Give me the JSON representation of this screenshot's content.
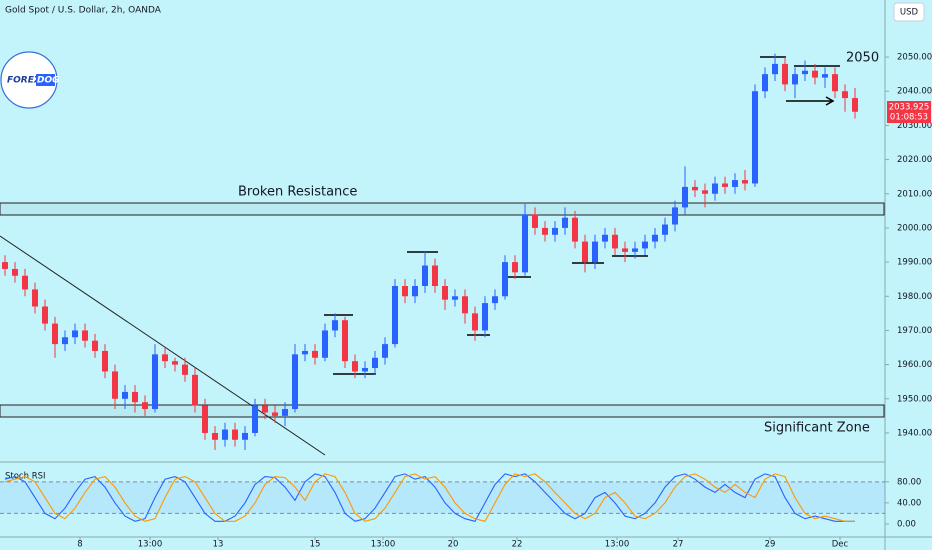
{
  "header": {
    "title": "Gold Spot / U.S. Dollar, 2h, OANDA",
    "currency": "USD"
  },
  "logo": {
    "text1": "FOREX",
    "text2": "DOG"
  },
  "chart_data": [
    {
      "type": "candlestick",
      "open": [
        1990,
        1988,
        1986,
        1982,
        1977,
        1972,
        1966,
        1968,
        1970,
        1967,
        1964,
        1958,
        1950,
        1952,
        1949,
        1947,
        1963,
        1961,
        1960,
        1957,
        1948,
        1940,
        1938,
        1941,
        1938,
        1940,
        1948,
        1946,
        1945,
        1947,
        1963,
        1964,
        1962,
        1970,
        1973,
        1961,
        1958,
        1959,
        1962,
        1966,
        1983,
        1980,
        1983,
        1989,
        1983,
        1979,
        1980,
        1975,
        1970,
        1978,
        1980,
        1990,
        1987,
        2004,
        2000,
        1998,
        2000,
        2003,
        1996,
        1990,
        1996,
        1998,
        1994,
        1993,
        1994,
        1996,
        1998,
        2001,
        2006,
        2012,
        2011,
        2010,
        2013,
        2012,
        2014,
        2013,
        2040,
        2045,
        2048,
        2042,
        2045,
        2046,
        2044,
        2045,
        2040,
        2038
      ],
      "high": [
        1992,
        1990,
        1988,
        1984,
        1979,
        1974,
        1970,
        1972,
        1972,
        1969,
        1966,
        1960,
        1954,
        1954,
        1951,
        1966,
        1965,
        1962,
        1962,
        1959,
        1950,
        1942,
        1943,
        1943,
        1942,
        1950,
        1950,
        1948,
        1949,
        1966,
        1966,
        1966,
        1972,
        1975,
        1974,
        1963,
        1961,
        1964,
        1968,
        1985,
        1985,
        1985,
        1993,
        1991,
        1985,
        1982,
        1982,
        1977,
        1980,
        1982,
        1992,
        1992,
        2007,
        2006,
        2002,
        2002,
        2006,
        2005,
        1998,
        1998,
        2000,
        2000,
        1996,
        1996,
        1998,
        2000,
        2003,
        2008,
        2018,
        2014,
        2013,
        2015,
        2015,
        2016,
        2017,
        2042,
        2047,
        2051,
        2050,
        2047,
        2049,
        2048,
        2047,
        2047,
        2042,
        2041
      ],
      "low": [
        1986,
        1984,
        1980,
        1975,
        1970,
        1962,
        1964,
        1966,
        1965,
        1962,
        1956,
        1947,
        1947,
        1946,
        1945,
        1946,
        1959,
        1958,
        1955,
        1946,
        1938,
        1935,
        1936,
        1936,
        1935,
        1939,
        1944,
        1943,
        1942,
        1946,
        1961,
        1960,
        1961,
        1968,
        1959,
        1956,
        1956,
        1957,
        1960,
        1965,
        1978,
        1978,
        1981,
        1981,
        1976,
        1977,
        1972,
        1967,
        1968,
        1976,
        1979,
        1985,
        1986,
        1998,
        1996,
        1996,
        1998,
        1994,
        1987,
        1988,
        1994,
        1992,
        1990,
        1991,
        1992,
        1994,
        1996,
        1999,
        2004,
        2009,
        2006,
        2008,
        2010,
        2010,
        2011,
        2012,
        2038,
        2043,
        2040,
        2038,
        2043,
        2042,
        2041,
        2038,
        2034,
        2032
      ],
      "close": [
        1988,
        1986,
        1982,
        1977,
        1972,
        1966,
        1968,
        1970,
        1967,
        1964,
        1958,
        1950,
        1952,
        1949,
        1947,
        1963,
        1961,
        1960,
        1957,
        1948,
        1940,
        1938,
        1941,
        1938,
        1940,
        1948,
        1946,
        1945,
        1947,
        1963,
        1964,
        1962,
        1970,
        1973,
        1961,
        1958,
        1959,
        1962,
        1966,
        1983,
        1980,
        1983,
        1989,
        1983,
        1979,
        1980,
        1975,
        1970,
        1978,
        1980,
        1990,
        1987,
        2004,
        2000,
        1998,
        2000,
        2003,
        1996,
        1990,
        1996,
        1998,
        1994,
        1993,
        1994,
        1996,
        1998,
        2001,
        2006,
        2012,
        2011,
        2010,
        2013,
        2012,
        2014,
        2013,
        2040,
        2045,
        2048,
        2042,
        2045,
        2046,
        2044,
        2045,
        2040,
        2038,
        2034
      ],
      "up_color": "#2962ff",
      "down_color": "#f23645",
      "xlim": [
        -0.5,
        88
      ],
      "xticks": [
        {
          "value": 7.5,
          "label": "8"
        },
        {
          "value": 14.5,
          "label": "13:00"
        },
        {
          "value": 21.3,
          "label": "13"
        },
        {
          "value": 31,
          "label": "15"
        },
        {
          "value": 37.8,
          "label": "13:00"
        },
        {
          "value": 44.8,
          "label": "20"
        },
        {
          "value": 51.2,
          "label": "22"
        },
        {
          "value": 61.2,
          "label": "13:00"
        },
        {
          "value": 67.3,
          "label": "27"
        },
        {
          "value": 76.5,
          "label": "29"
        },
        {
          "value": 83.5,
          "label": "Dec"
        }
      ],
      "ylim": [
        1931.5,
        2066.7
      ],
      "yticks": [
        {
          "value": 1940,
          "label": "1940.000"
        },
        {
          "value": 1950,
          "label": "1950.000"
        },
        {
          "value": 1960,
          "label": "1960.000"
        },
        {
          "value": 1970,
          "label": "1970.000"
        },
        {
          "value": 1980,
          "label": "1980.000"
        },
        {
          "value": 1990,
          "label": "1990.000"
        },
        {
          "value": 2000,
          "label": "2000.000"
        },
        {
          "value": 2010,
          "label": "2010.000"
        },
        {
          "value": 2020,
          "label": "2020.000"
        },
        {
          "value": 2030,
          "label": "2030.000"
        },
        {
          "value": 2040,
          "label": "2040.000"
        },
        {
          "value": 2050,
          "label": "2050.000"
        }
      ],
      "annotations": [
        "Broken Resistance",
        "Significant Zone",
        "2050"
      ],
      "last_price": {
        "value": 2033.925,
        "label": "2033.925"
      },
      "countdown": "01:08:53"
    },
    {
      "type": "line",
      "title": "Stoch RSI",
      "xlim": [
        -0.5,
        88
      ],
      "ylim": [
        -21,
        112
      ],
      "yticks": [
        {
          "value": 80,
          "label": "80.00"
        },
        {
          "value": 40,
          "label": "40.00"
        },
        {
          "value": 0,
          "label": "0.00"
        }
      ],
      "band": [
        20,
        80
      ],
      "series": [
        {
          "color": "#2962ff",
          "values": [
            85,
            90,
            80,
            50,
            20,
            10,
            30,
            60,
            85,
            90,
            70,
            40,
            15,
            5,
            10,
            50,
            85,
            90,
            80,
            50,
            20,
            5,
            5,
            15,
            40,
            75,
            90,
            88,
            70,
            45,
            80,
            95,
            90,
            60,
            20,
            5,
            10,
            30,
            60,
            90,
            95,
            85,
            90,
            70,
            40,
            20,
            10,
            5,
            40,
            75,
            95,
            90,
            95,
            80,
            60,
            40,
            20,
            10,
            20,
            50,
            60,
            40,
            15,
            10,
            20,
            40,
            70,
            90,
            95,
            85,
            70,
            60,
            75,
            60,
            50,
            85,
            95,
            90,
            50,
            20,
            10,
            15,
            10,
            5,
            5,
            5
          ]
        },
        {
          "color": "#ff9800",
          "values": [
            80,
            85,
            90,
            80,
            50,
            20,
            10,
            30,
            60,
            85,
            90,
            70,
            40,
            15,
            5,
            10,
            50,
            85,
            90,
            80,
            50,
            20,
            5,
            5,
            15,
            40,
            75,
            90,
            88,
            70,
            45,
            80,
            95,
            90,
            60,
            20,
            5,
            10,
            30,
            60,
            90,
            95,
            85,
            90,
            70,
            40,
            20,
            10,
            5,
            40,
            75,
            95,
            90,
            95,
            80,
            60,
            40,
            20,
            10,
            20,
            50,
            60,
            40,
            15,
            10,
            20,
            40,
            70,
            90,
            95,
            85,
            70,
            60,
            75,
            60,
            50,
            85,
            95,
            90,
            50,
            20,
            10,
            15,
            10,
            5,
            5
          ]
        }
      ]
    }
  ]
}
